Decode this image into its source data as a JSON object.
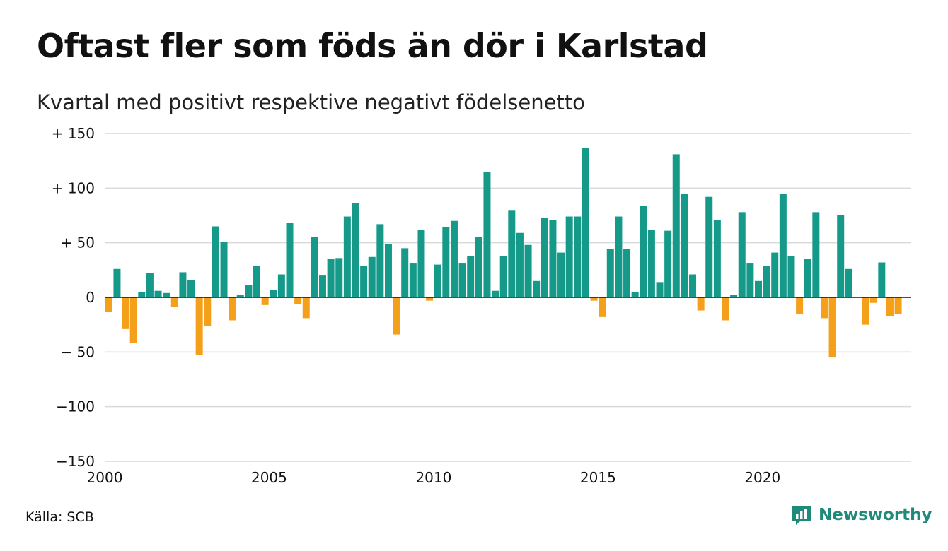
{
  "title": "Oftast fler som föds än dör i Karlstad",
  "subtitle": "Kvartal med positivt respektive negativt födelsenetto",
  "source": "Källa: SCB",
  "brand": {
    "name": "Newsworthy",
    "icon": "newsworthy-chart-icon",
    "color": "#1f8a7a"
  },
  "colors": {
    "positive": "#159a8a",
    "negative": "#f5a01a",
    "grid": "#d9d9d9",
    "axis": "#111111"
  },
  "chart_data": {
    "type": "bar",
    "title": "Oftast fler som föds än dör i Karlstad",
    "subtitle": "Kvartal med positivt respektive negativt födelsenetto",
    "xlabel": "",
    "ylabel": "",
    "ylim": [
      -150,
      150
    ],
    "xlim": [
      2000,
      2024.5
    ],
    "x_tick_labels": [
      "2000",
      "2005",
      "2010",
      "2015",
      "2020"
    ],
    "x_tick_values": [
      2000,
      2005,
      2010,
      2015,
      2020
    ],
    "y_tick_labels": [
      "+ 150",
      "+ 100",
      "+  50",
      "0",
      "− 50",
      "−100",
      "−150"
    ],
    "y_tick_values": [
      150,
      100,
      50,
      0,
      -50,
      -100,
      -150
    ],
    "grid": true,
    "series": [
      {
        "values": [
          {
            "x": "2000 Q1",
            "y": -13
          },
          {
            "x": "2000 Q2",
            "y": 26
          },
          {
            "x": "2000 Q3",
            "y": -29
          },
          {
            "x": "2000 Q4",
            "y": -42
          },
          {
            "x": "2001 Q1",
            "y": 5
          },
          {
            "x": "2001 Q2",
            "y": 22
          },
          {
            "x": "2001 Q3",
            "y": 6
          },
          {
            "x": "2001 Q4",
            "y": 4
          },
          {
            "x": "2002 Q1",
            "y": -9
          },
          {
            "x": "2002 Q2",
            "y": 23
          },
          {
            "x": "2002 Q3",
            "y": 16
          },
          {
            "x": "2002 Q4",
            "y": -53
          },
          {
            "x": "2003 Q1",
            "y": -26
          },
          {
            "x": "2003 Q2",
            "y": 65
          },
          {
            "x": "2003 Q3",
            "y": 51
          },
          {
            "x": "2003 Q4",
            "y": -21
          },
          {
            "x": "2004 Q1",
            "y": 2
          },
          {
            "x": "2004 Q2",
            "y": 11
          },
          {
            "x": "2004 Q3",
            "y": 29
          },
          {
            "x": "2004 Q4",
            "y": -7
          },
          {
            "x": "2005 Q1",
            "y": 7
          },
          {
            "x": "2005 Q2",
            "y": 21
          },
          {
            "x": "2005 Q3",
            "y": 68
          },
          {
            "x": "2005 Q4",
            "y": -6
          },
          {
            "x": "2006 Q1",
            "y": -19
          },
          {
            "x": "2006 Q2",
            "y": 55
          },
          {
            "x": "2006 Q3",
            "y": 20
          },
          {
            "x": "2006 Q4",
            "y": 35
          },
          {
            "x": "2007 Q1",
            "y": 36
          },
          {
            "x": "2007 Q2",
            "y": 74
          },
          {
            "x": "2007 Q3",
            "y": 86
          },
          {
            "x": "2007 Q4",
            "y": 29
          },
          {
            "x": "2008 Q1",
            "y": 37
          },
          {
            "x": "2008 Q2",
            "y": 67
          },
          {
            "x": "2008 Q3",
            "y": 49
          },
          {
            "x": "2008 Q4",
            "y": -34
          },
          {
            "x": "2009 Q1",
            "y": 45
          },
          {
            "x": "2009 Q2",
            "y": 31
          },
          {
            "x": "2009 Q3",
            "y": 62
          },
          {
            "x": "2009 Q4",
            "y": -3
          },
          {
            "x": "2010 Q1",
            "y": 30
          },
          {
            "x": "2010 Q2",
            "y": 64
          },
          {
            "x": "2010 Q3",
            "y": 70
          },
          {
            "x": "2010 Q4",
            "y": 31
          },
          {
            "x": "2011 Q1",
            "y": 38
          },
          {
            "x": "2011 Q2",
            "y": 55
          },
          {
            "x": "2011 Q3",
            "y": 115
          },
          {
            "x": "2011 Q4",
            "y": 6
          },
          {
            "x": "2012 Q1",
            "y": 38
          },
          {
            "x": "2012 Q2",
            "y": 80
          },
          {
            "x": "2012 Q3",
            "y": 59
          },
          {
            "x": "2012 Q4",
            "y": 48
          },
          {
            "x": "2013 Q1",
            "y": 15
          },
          {
            "x": "2013 Q2",
            "y": 73
          },
          {
            "x": "2013 Q3",
            "y": 71
          },
          {
            "x": "2013 Q4",
            "y": 41
          },
          {
            "x": "2014 Q1",
            "y": 74
          },
          {
            "x": "2014 Q2",
            "y": 74
          },
          {
            "x": "2014 Q3",
            "y": 137
          },
          {
            "x": "2014 Q4",
            "y": -3
          },
          {
            "x": "2015 Q1",
            "y": -18
          },
          {
            "x": "2015 Q2",
            "y": 44
          },
          {
            "x": "2015 Q3",
            "y": 74
          },
          {
            "x": "2015 Q4",
            "y": 44
          },
          {
            "x": "2016 Q1",
            "y": 5
          },
          {
            "x": "2016 Q2",
            "y": 84
          },
          {
            "x": "2016 Q3",
            "y": 62
          },
          {
            "x": "2016 Q4",
            "y": 14
          },
          {
            "x": "2017 Q1",
            "y": 61
          },
          {
            "x": "2017 Q2",
            "y": 131
          },
          {
            "x": "2017 Q3",
            "y": 95
          },
          {
            "x": "2017 Q4",
            "y": 21
          },
          {
            "x": "2018 Q1",
            "y": -12
          },
          {
            "x": "2018 Q2",
            "y": 92
          },
          {
            "x": "2018 Q3",
            "y": 71
          },
          {
            "x": "2018 Q4",
            "y": -21
          },
          {
            "x": "2019 Q1",
            "y": 2
          },
          {
            "x": "2019 Q2",
            "y": 78
          },
          {
            "x": "2019 Q3",
            "y": 31
          },
          {
            "x": "2019 Q4",
            "y": 15
          },
          {
            "x": "2020 Q1",
            "y": 29
          },
          {
            "x": "2020 Q2",
            "y": 41
          },
          {
            "x": "2020 Q3",
            "y": 95
          },
          {
            "x": "2020 Q4",
            "y": 38
          },
          {
            "x": "2021 Q1",
            "y": -15
          },
          {
            "x": "2021 Q2",
            "y": 35
          },
          {
            "x": "2021 Q3",
            "y": 78
          },
          {
            "x": "2021 Q4",
            "y": -19
          },
          {
            "x": "2022 Q1",
            "y": -55
          },
          {
            "x": "2022 Q2",
            "y": 75
          },
          {
            "x": "2022 Q3",
            "y": 26
          },
          {
            "x": "2022 Q4",
            "y": 0
          },
          {
            "x": "2023 Q1",
            "y": -25
          },
          {
            "x": "2023 Q2",
            "y": -5
          },
          {
            "x": "2023 Q3",
            "y": 32
          },
          {
            "x": "2023 Q4",
            "y": -17
          },
          {
            "x": "2024 Q1",
            "y": -15
          }
        ]
      }
    ]
  }
}
